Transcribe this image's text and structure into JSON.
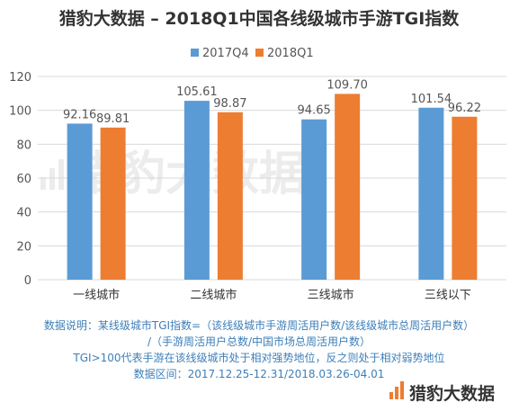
{
  "chart_data": {
    "type": "bar",
    "title": "猎豹大数据 – 2018Q1中国各线级城市手游TGI指数",
    "categories": [
      "一线城市",
      "二线城市",
      "三线城市",
      "三线以下"
    ],
    "series": [
      {
        "name": "2017Q4",
        "color": "#5b9bd5",
        "values": [
          92.16,
          105.61,
          94.65,
          101.54
        ],
        "labels": [
          "92.16",
          "105.61",
          "94.65",
          "101.54"
        ]
      },
      {
        "name": "2018Q1",
        "color": "#ed7d31",
        "values": [
          89.81,
          98.87,
          109.7,
          96.22
        ],
        "labels": [
          "89.81",
          "98.87",
          "109.70",
          "96.22"
        ]
      }
    ],
    "ylim": [
      0,
      120
    ],
    "yticks": [
      "0",
      "20",
      "40",
      "60",
      "80",
      "100",
      "120"
    ],
    "xlabel": "",
    "ylabel": "",
    "grid": true,
    "legend_position": "top"
  },
  "notes": [
    "数据说明：某线级城市TGI指数=（该线级城市手游周活用户数/该线级城市总周活用户数）",
    "/（手游周活用户总数/中国市场总周活用户数）",
    "TGI>100代表手游在该线级城市处于相对强势地位，反之则处于相对弱势地位",
    "数据区间：2017.12.25-12.31/2018.03.26-04.01"
  ],
  "watermark": "猎豹大数据",
  "brand": {
    "name": "猎豹大数据",
    "icon": "bar-logo-icon",
    "color": "#ed7d31"
  },
  "colors": {
    "axis": "#d9d9d9",
    "note": "#3d7fb8"
  }
}
